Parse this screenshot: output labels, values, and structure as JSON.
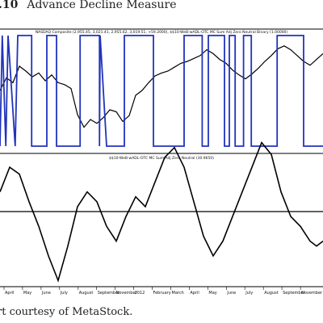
{
  "figure": {
    "number": ".10",
    "title": "Advance Decline Measure",
    "credit": "rt courtesy of MetaStock."
  },
  "chart_data": [
    {
      "type": "line",
      "panel": "upper",
      "title": "NASDAQ Composite (2,955.45, 3,021.41, 2,955.62, 3,019.51, +59.2000), $$10-WeB-wADL-OTC MC Sum Adj Zero Neutral Binary (1.00000)",
      "xlabel": "",
      "ylabel": "",
      "grid": false,
      "legend": "none",
      "series": [
        {
          "name": "NASDAQ Composite",
          "color": "#000000",
          "x": [
            0,
            0.02,
            0.04,
            0.06,
            0.08,
            0.1,
            0.12,
            0.14,
            0.16,
            0.18,
            0.2,
            0.22,
            0.24,
            0.26,
            0.28,
            0.3,
            0.32,
            0.34,
            0.36,
            0.38,
            0.4,
            0.42,
            0.44,
            0.46,
            0.48,
            0.5,
            0.52,
            0.54,
            0.56,
            0.58,
            0.6,
            0.62,
            0.64,
            0.66,
            0.68,
            0.7,
            0.72,
            0.74,
            0.76,
            0.78,
            0.8,
            0.82,
            0.84,
            0.86,
            0.88,
            0.9,
            0.92,
            0.94,
            0.96,
            0.98,
            1
          ],
          "y": [
            50,
            63,
            58,
            75,
            70,
            64,
            68,
            60,
            66,
            58,
            56,
            52,
            25,
            12,
            20,
            16,
            22,
            30,
            28,
            18,
            24,
            45,
            50,
            58,
            65,
            68,
            70,
            74,
            78,
            80,
            83,
            86,
            92,
            88,
            82,
            78,
            71,
            66,
            62,
            67,
            73,
            80,
            86,
            93,
            96,
            92,
            86,
            80,
            76,
            82,
            88
          ]
        },
        {
          "name": "$$10-WeB-wADL-OTC MC Sum Adj Zero Neutral Binary",
          "color": "#2233bb",
          "step": true,
          "x": [
            0,
            0.007,
            0.018,
            0.025,
            0.047,
            0.055,
            0.098,
            0.098,
            0.145,
            0.145,
            0.175,
            0.175,
            0.248,
            0.248,
            0.308,
            0.308,
            0.31,
            0.33,
            0.385,
            0.385,
            0.475,
            0.475,
            0.57,
            0.57,
            0.626,
            0.626,
            0.645,
            0.645,
            0.695,
            0.695,
            0.71,
            0.71,
            0.728,
            0.728,
            0.754,
            0.754,
            0.778,
            0.778,
            0.858,
            0.858,
            0.94,
            0.94,
            1
          ],
          "y": [
            0,
            1,
            0,
            1,
            0,
            1,
            1,
            0,
            0,
            1,
            1,
            0,
            0,
            1,
            1,
            0,
            1,
            0,
            0,
            1,
            1,
            0,
            0,
            1,
            1,
            0,
            0,
            1,
            1,
            0,
            0,
            1,
            1,
            0,
            0,
            1,
            1,
            0,
            0,
            1,
            1,
            0,
            0
          ]
        }
      ]
    },
    {
      "type": "line",
      "panel": "lower",
      "title": "$$10-WeB-wADL-OTC MC Sum Adj Zero Neutral (30.9650)",
      "xlabel": "",
      "ylabel": "",
      "grid": false,
      "legend": "none",
      "categories": [
        "April",
        "May",
        "June",
        "July",
        "August",
        "September",
        "November",
        "2012",
        "February",
        "March",
        "April",
        "May",
        "June",
        "July",
        "August",
        "September",
        "November"
      ],
      "reference_line": 0,
      "series": [
        {
          "name": "$$10-WeB-wADL-OTC MC Sum Adj Zero Neutral",
          "color": "#000000",
          "x": [
            0,
            0.03,
            0.06,
            0.09,
            0.12,
            0.15,
            0.18,
            0.21,
            0.24,
            0.27,
            0.3,
            0.33,
            0.36,
            0.39,
            0.42,
            0.45,
            0.48,
            0.51,
            0.54,
            0.57,
            0.6,
            0.63,
            0.66,
            0.69,
            0.72,
            0.75,
            0.78,
            0.81,
            0.84,
            0.87,
            0.9,
            0.93,
            0.96,
            0.98,
            1
          ],
          "y": [
            20,
            45,
            38,
            10,
            -15,
            -45,
            -70,
            -35,
            5,
            20,
            10,
            -15,
            -30,
            -5,
            15,
            5,
            30,
            55,
            65,
            45,
            10,
            -25,
            -45,
            -30,
            -5,
            20,
            45,
            70,
            58,
            20,
            -5,
            -15,
            -30,
            -35,
            -30
          ]
        }
      ]
    }
  ]
}
